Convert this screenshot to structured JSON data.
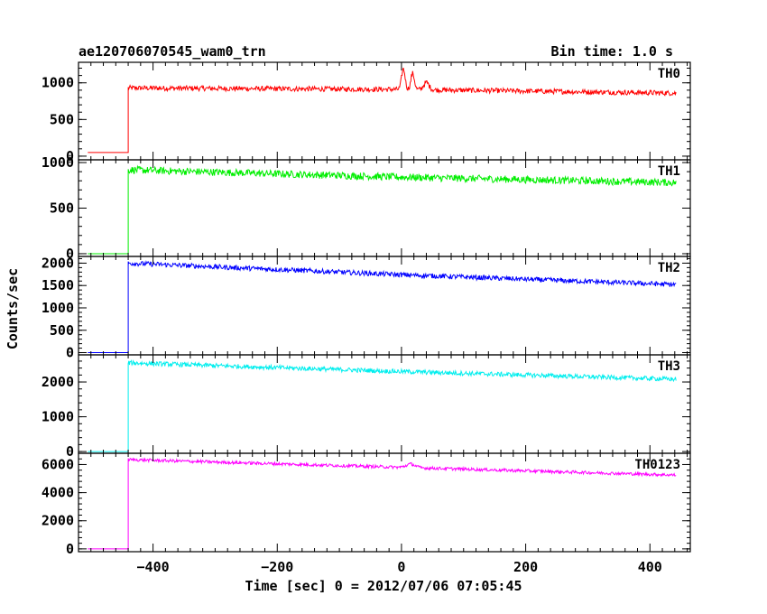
{
  "header": {
    "title": "ae120706070545_wam0_trn",
    "bin_time": "Bin time: 1.0 s"
  },
  "chart_data": {
    "type": "line",
    "x_label": "Time [sec] 0 = 2012/07/06 07:05:45",
    "y_label": "Counts/sec",
    "x_range": [
      -520,
      465
    ],
    "x_ticks": [
      -400,
      -200,
      0,
      200,
      400
    ],
    "x_tick_labels": [
      "−400",
      "−200",
      "0",
      "200",
      "400"
    ],
    "start_x": -505,
    "onset_x": -440,
    "end_x": 442,
    "panels": [
      {
        "label": "TH0",
        "color": "#ff0000",
        "y_range": [
          -50,
          1280
        ],
        "y_ticks": [
          0,
          500,
          1000
        ],
        "pre_level": 50,
        "profile": [
          [
            -440,
            930
          ],
          [
            0,
            910
          ],
          [
            442,
            860
          ]
        ],
        "noise": 35,
        "bumps": [
          {
            "x": 3,
            "height": 280,
            "width": 4
          },
          {
            "x": 18,
            "height": 220,
            "width": 4
          },
          {
            "x": 40,
            "height": 100,
            "width": 6
          }
        ]
      },
      {
        "label": "TH1",
        "color": "#00ee00",
        "y_range": [
          -30,
          1030
        ],
        "y_ticks": [
          0,
          500,
          1000
        ],
        "pre_level": 0,
        "profile": [
          [
            -440,
            920
          ],
          [
            0,
            840
          ],
          [
            442,
            780
          ]
        ],
        "noise": 40,
        "bumps": []
      },
      {
        "label": "TH2",
        "color": "#0000ff",
        "y_range": [
          -50,
          2150
        ],
        "y_ticks": [
          0,
          500,
          1000,
          1500,
          2000
        ],
        "pre_level": 0,
        "profile": [
          [
            -440,
            2000
          ],
          [
            0,
            1740
          ],
          [
            442,
            1520
          ]
        ],
        "noise": 55,
        "bumps": []
      },
      {
        "label": "TH3",
        "color": "#00eeee",
        "y_range": [
          -50,
          2780
        ],
        "y_ticks": [
          0,
          1000,
          2000
        ],
        "pre_level": 0,
        "profile": [
          [
            -440,
            2550
          ],
          [
            0,
            2300
          ],
          [
            442,
            2080
          ]
        ],
        "noise": 65,
        "bumps": []
      },
      {
        "label": "TH0123",
        "color": "#ff00ff",
        "y_range": [
          -200,
          6800
        ],
        "y_ticks": [
          0,
          2000,
          4000,
          6000
        ],
        "pre_level": 0,
        "profile": [
          [
            -440,
            6350
          ],
          [
            0,
            5800
          ],
          [
            442,
            5250
          ]
        ],
        "noise": 110,
        "bumps": [
          {
            "x": 15,
            "height": 250,
            "width": 10
          }
        ]
      }
    ]
  }
}
